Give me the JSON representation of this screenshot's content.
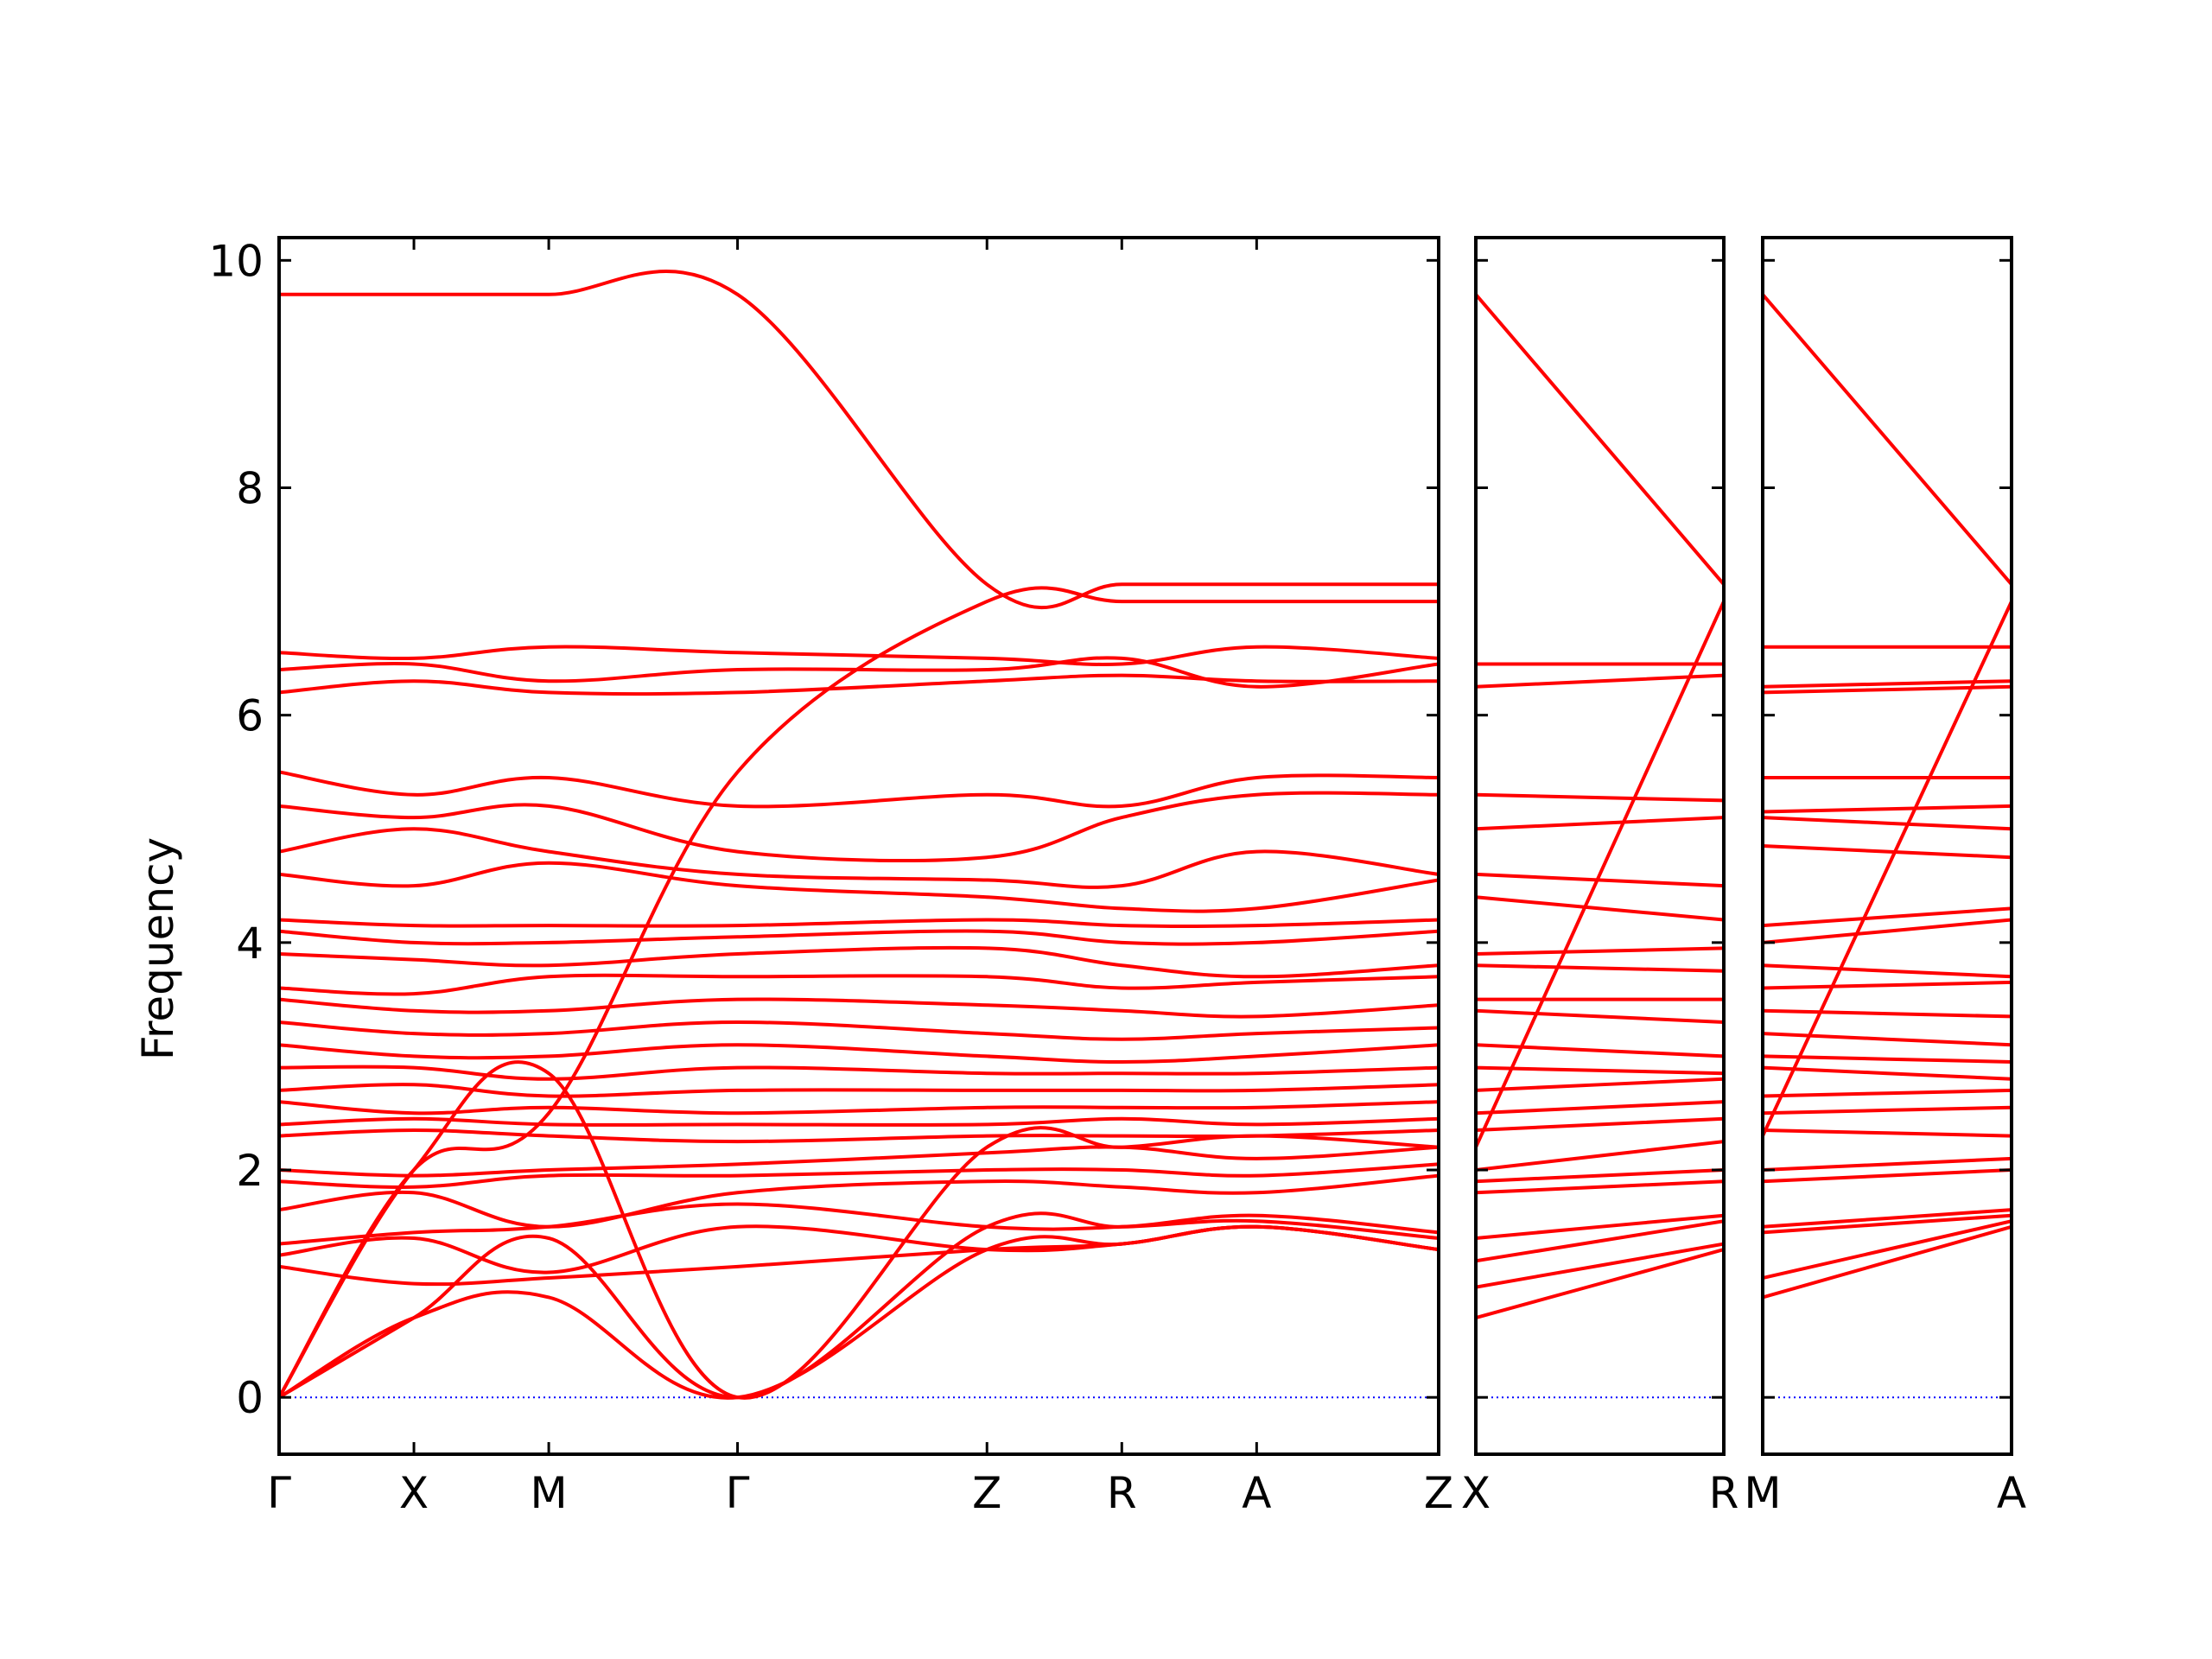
{
  "chart_data": {
    "type": "line",
    "title": "",
    "ylabel": "Frequency",
    "xlabel": "",
    "ylim": [
      -0.5,
      10.2
    ],
    "yticks": [
      0,
      2,
      4,
      6,
      8,
      10
    ],
    "grid": false,
    "band_color": "#ff0000",
    "zero_line_color": "#0000ff",
    "panels": [
      {
        "id": "main",
        "labels": [
          "Γ",
          "X",
          "M",
          "Γ",
          "Z",
          "R",
          "A",
          "Z"
        ],
        "x": [
          0,
          1,
          2,
          3.4,
          5.25,
          6.25,
          7.25,
          8.6
        ],
        "series": [
          {
            "y": [
              9.7,
              9.7,
              9.7,
              9.7,
              7.15,
              7.15,
              7.15,
              7.15
            ]
          },
          {
            "y": [
              0,
              2.0,
              2.5,
              5.5,
              7.0,
              7.0,
              7.0,
              7.0
            ]
          },
          {
            "y": [
              6.55,
              6.5,
              6.6,
              6.55,
              6.5,
              6.45,
              6.6,
              6.5
            ]
          },
          {
            "y": [
              6.4,
              6.45,
              6.3,
              6.4,
              6.4,
              6.5,
              6.25,
              6.45
            ]
          },
          {
            "y": [
              6.2,
              6.3,
              6.2,
              6.2,
              6.3,
              6.35,
              6.3,
              6.3
            ]
          },
          {
            "y": [
              5.5,
              5.3,
              5.45,
              5.2,
              5.3,
              5.2,
              5.45,
              5.45
            ]
          },
          {
            "y": [
              5.2,
              5.1,
              5.2,
              4.8,
              4.75,
              5.1,
              5.3,
              5.3
            ]
          },
          {
            "y": [
              4.8,
              5.0,
              4.8,
              4.6,
              4.55,
              4.5,
              4.8,
              4.6
            ]
          },
          {
            "y": [
              4.6,
              4.5,
              4.7,
              4.5,
              4.4,
              4.3,
              4.3,
              4.55
            ]
          },
          {
            "y": [
              4.2,
              4.15,
              4.15,
              4.15,
              4.2,
              4.15,
              4.15,
              4.2
            ]
          },
          {
            "y": [
              4.1,
              4.0,
              4.0,
              4.05,
              4.1,
              4.0,
              4.0,
              4.1
            ]
          },
          {
            "y": [
              3.9,
              3.85,
              3.8,
              3.9,
              3.95,
              3.8,
              3.7,
              3.8
            ]
          },
          {
            "y": [
              3.6,
              3.55,
              3.7,
              3.7,
              3.7,
              3.6,
              3.65,
              3.7
            ]
          },
          {
            "y": [
              3.5,
              3.4,
              3.4,
              3.5,
              3.45,
              3.4,
              3.35,
              3.45
            ]
          },
          {
            "y": [
              3.3,
              3.2,
              3.2,
              3.3,
              3.2,
              3.15,
              3.2,
              3.25
            ]
          },
          {
            "y": [
              3.1,
              3.0,
              3.0,
              3.1,
              3.0,
              2.95,
              3.0,
              3.1
            ]
          },
          {
            "y": [
              2.9,
              2.9,
              2.8,
              2.9,
              2.85,
              2.85,
              2.85,
              2.9
            ]
          },
          {
            "y": [
              2.7,
              2.75,
              2.65,
              2.7,
              2.7,
              2.7,
              2.7,
              2.75
            ]
          },
          {
            "y": [
              2.6,
              2.5,
              2.55,
              2.5,
              2.55,
              2.55,
              2.55,
              2.6
            ]
          },
          {
            "y": [
              2.4,
              2.45,
              2.4,
              2.4,
              2.4,
              2.45,
              2.4,
              2.45
            ]
          },
          {
            "y": [
              2.3,
              2.35,
              2.3,
              2.25,
              2.3,
              2.3,
              2.3,
              2.35
            ]
          },
          {
            "y": [
              2.0,
              1.95,
              2.0,
              2.05,
              2.15,
              2.2,
              2.1,
              2.2
            ]
          },
          {
            "y": [
              1.9,
              1.85,
              1.95,
              1.95,
              2.0,
              2.0,
              1.95,
              2.05
            ]
          },
          {
            "y": [
              1.65,
              1.8,
              1.5,
              1.8,
              1.9,
              1.85,
              1.8,
              1.95
            ]
          },
          {
            "y": [
              1.35,
              1.45,
              1.5,
              1.7,
              1.5,
              1.5,
              1.6,
              1.45
            ]
          },
          {
            "y": [
              1.25,
              1.4,
              1.1,
              1.5,
              1.3,
              1.35,
              1.5,
              1.3
            ]
          },
          {
            "y": [
              1.15,
              1.0,
              1.05,
              1.15,
              1.3,
              1.35,
              1.5,
              1.3
            ]
          },
          {
            "y": [
              0,
              0.7,
              0.88,
              0,
              1.3,
              1.35,
              1.5,
              1.3
            ]
          },
          {
            "y": [
              0,
              0.7,
              1.4,
              0,
              1.5,
              1.5,
              1.55,
              1.4
            ]
          },
          {
            "y": [
              0,
              2.0,
              2.85,
              0,
              2.2,
              2.2,
              2.3,
              2.2
            ]
          }
        ]
      },
      {
        "id": "xr",
        "labels": [
          "X",
          "R"
        ],
        "x": [
          0,
          1
        ],
        "series": [
          {
            "y": [
              9.7,
              7.15
            ]
          },
          {
            "y": [
              2.2,
              7.0
            ]
          },
          {
            "y": [
              6.45,
              6.45
            ]
          },
          {
            "y": [
              6.25,
              6.35
            ]
          },
          {
            "y": [
              5.3,
              5.25
            ]
          },
          {
            "y": [
              5.0,
              5.1
            ]
          },
          {
            "y": [
              4.6,
              4.5
            ]
          },
          {
            "y": [
              4.4,
              4.2
            ]
          },
          {
            "y": [
              3.9,
              3.95
            ]
          },
          {
            "y": [
              3.8,
              3.75
            ]
          },
          {
            "y": [
              3.5,
              3.5
            ]
          },
          {
            "y": [
              3.4,
              3.3
            ]
          },
          {
            "y": [
              3.1,
              3.0
            ]
          },
          {
            "y": [
              2.9,
              2.85
            ]
          },
          {
            "y": [
              2.7,
              2.8
            ]
          },
          {
            "y": [
              2.5,
              2.6
            ]
          },
          {
            "y": [
              2.35,
              2.45
            ]
          },
          {
            "y": [
              2.0,
              2.25
            ]
          },
          {
            "y": [
              1.9,
              2.0
            ]
          },
          {
            "y": [
              1.8,
              1.9
            ]
          },
          {
            "y": [
              1.4,
              1.6
            ]
          },
          {
            "y": [
              1.2,
              1.55
            ]
          },
          {
            "y": [
              0.97,
              1.35
            ]
          },
          {
            "y": [
              0.7,
              1.3
            ]
          }
        ]
      },
      {
        "id": "ma",
        "labels": [
          "M",
          "A"
        ],
        "x": [
          0,
          1
        ],
        "series": [
          {
            "y": [
              9.7,
              7.15
            ]
          },
          {
            "y": [
              2.3,
              7.0
            ]
          },
          {
            "y": [
              6.6,
              6.6
            ]
          },
          {
            "y": [
              6.25,
              6.3
            ]
          },
          {
            "y": [
              6.2,
              6.25
            ]
          },
          {
            "y": [
              5.45,
              5.45
            ]
          },
          {
            "y": [
              5.15,
              5.2
            ]
          },
          {
            "y": [
              5.1,
              5.0
            ]
          },
          {
            "y": [
              4.85,
              4.75
            ]
          },
          {
            "y": [
              4.15,
              4.3
            ]
          },
          {
            "y": [
              4.0,
              4.2
            ]
          },
          {
            "y": [
              3.8,
              3.7
            ]
          },
          {
            "y": [
              3.6,
              3.65
            ]
          },
          {
            "y": [
              3.4,
              3.35
            ]
          },
          {
            "y": [
              3.2,
              3.1
            ]
          },
          {
            "y": [
              3.0,
              2.95
            ]
          },
          {
            "y": [
              2.9,
              2.8
            ]
          },
          {
            "y": [
              2.65,
              2.7
            ]
          },
          {
            "y": [
              2.5,
              2.55
            ]
          },
          {
            "y": [
              2.35,
              2.3
            ]
          },
          {
            "y": [
              2.0,
              2.1
            ]
          },
          {
            "y": [
              1.9,
              2.0
            ]
          },
          {
            "y": [
              1.5,
              1.65
            ]
          },
          {
            "y": [
              1.45,
              1.6
            ]
          },
          {
            "y": [
              1.05,
              1.55
            ]
          },
          {
            "y": [
              0.88,
              1.5
            ]
          }
        ]
      }
    ]
  }
}
